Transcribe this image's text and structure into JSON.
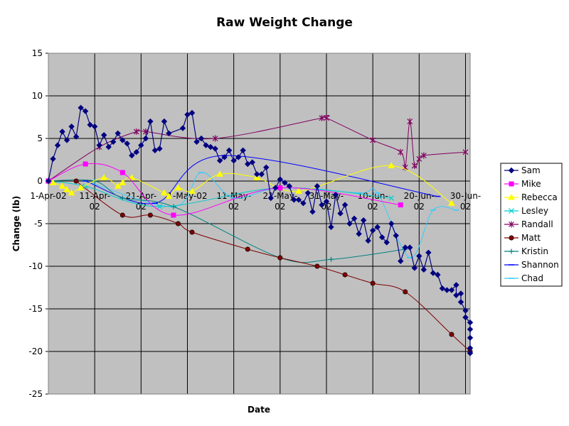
{
  "chart_data": {
    "type": "line",
    "title": "Raw Weight Change",
    "xlabel": "Date",
    "ylabel": "Change (lb)",
    "ylim": [
      -25,
      15
    ],
    "yticks": [
      15,
      10,
      5,
      0,
      -5,
      -10,
      -15,
      -20,
      -25
    ],
    "xlim": [
      "2002-04-01",
      "2002-07-01"
    ],
    "xticks": [
      {
        "date": "2002-04-01",
        "l1": "1-Apr-02",
        "l2": ""
      },
      {
        "date": "2002-04-11",
        "l1": "11-Apr-",
        "l2": "02"
      },
      {
        "date": "2002-04-21",
        "l1": "21-Apr-",
        "l2": "02"
      },
      {
        "date": "2002-05-01",
        "l1": "1-May-02",
        "l2": ""
      },
      {
        "date": "2002-05-11",
        "l1": "11-May-",
        "l2": "02"
      },
      {
        "date": "2002-05-21",
        "l1": "21-May-",
        "l2": "02"
      },
      {
        "date": "2002-05-31",
        "l1": "31-May-",
        "l2": "02"
      },
      {
        "date": "2002-06-10",
        "l1": "10-Jun-",
        "l2": "02"
      },
      {
        "date": "2002-06-20",
        "l1": "20-Jun-",
        "l2": "02"
      },
      {
        "date": "2002-06-30",
        "l1": "30-Jun-",
        "l2": "02"
      }
    ],
    "grid": true,
    "plot_background": "#c0c0c0",
    "legend_position": "right",
    "series": [
      {
        "name": "Sam",
        "color": "#000080",
        "marker": "diamond",
        "points": [
          [
            "2002-04-01",
            0
          ],
          [
            "2002-04-02",
            2.6
          ],
          [
            "2002-04-03",
            4.2
          ],
          [
            "2002-04-04",
            5.8
          ],
          [
            "2002-04-05",
            4.8
          ],
          [
            "2002-04-06",
            6.4
          ],
          [
            "2002-04-07",
            5.2
          ],
          [
            "2002-04-08",
            8.6
          ],
          [
            "2002-04-09",
            8.2
          ],
          [
            "2002-04-10",
            6.6
          ],
          [
            "2002-04-11",
            6.4
          ],
          [
            "2002-04-12",
            4.2
          ],
          [
            "2002-04-13",
            5.4
          ],
          [
            "2002-04-14",
            4.0
          ],
          [
            "2002-04-15",
            4.6
          ],
          [
            "2002-04-16",
            5.6
          ],
          [
            "2002-04-17",
            4.8
          ],
          [
            "2002-04-18",
            4.4
          ],
          [
            "2002-04-19",
            3.0
          ],
          [
            "2002-04-20",
            3.4
          ],
          [
            "2002-04-21",
            4.2
          ],
          [
            "2002-04-22",
            5.0
          ],
          [
            "2002-04-23",
            7.0
          ],
          [
            "2002-04-24",
            3.6
          ],
          [
            "2002-04-25",
            3.8
          ],
          [
            "2002-04-26",
            7.0
          ],
          [
            "2002-04-27",
            5.6
          ],
          [
            "2002-04-30",
            6.2
          ],
          [
            "2002-05-01",
            7.8
          ],
          [
            "2002-05-02",
            8.0
          ],
          [
            "2002-05-03",
            4.6
          ],
          [
            "2002-05-04",
            5.0
          ],
          [
            "2002-05-05",
            4.2
          ],
          [
            "2002-05-06",
            4.0
          ],
          [
            "2002-05-07",
            3.8
          ],
          [
            "2002-05-08",
            2.4
          ],
          [
            "2002-05-09",
            2.8
          ],
          [
            "2002-05-10",
            3.6
          ],
          [
            "2002-05-11",
            2.4
          ],
          [
            "2002-05-12",
            2.8
          ],
          [
            "2002-05-13",
            3.6
          ],
          [
            "2002-05-14",
            2.0
          ],
          [
            "2002-05-15",
            2.2
          ],
          [
            "2002-05-16",
            0.8
          ],
          [
            "2002-05-17",
            0.8
          ],
          [
            "2002-05-18",
            1.6
          ],
          [
            "2002-05-19",
            -2.0
          ],
          [
            "2002-05-20",
            -0.8
          ],
          [
            "2002-05-21",
            0.2
          ],
          [
            "2002-05-22",
            -0.2
          ],
          [
            "2002-05-23",
            -0.6
          ],
          [
            "2002-05-24",
            -2.2
          ],
          [
            "2002-05-25",
            -2.2
          ],
          [
            "2002-05-26",
            -2.6
          ],
          [
            "2002-05-27",
            -1.4
          ],
          [
            "2002-05-28",
            -3.6
          ],
          [
            "2002-05-29",
            -0.6
          ],
          [
            "2002-05-30",
            -2.8
          ],
          [
            "2002-05-31",
            -2.4
          ],
          [
            "2002-06-01",
            -5.4
          ],
          [
            "2002-06-02",
            -1.6
          ],
          [
            "2002-06-03",
            -3.8
          ],
          [
            "2002-06-04",
            -2.8
          ],
          [
            "2002-06-05",
            -5.0
          ],
          [
            "2002-06-06",
            -4.4
          ],
          [
            "2002-06-07",
            -6.2
          ],
          [
            "2002-06-08",
            -4.6
          ],
          [
            "2002-06-09",
            -7.0
          ],
          [
            "2002-06-10",
            -5.8
          ],
          [
            "2002-06-11",
            -5.4
          ],
          [
            "2002-06-12",
            -6.6
          ],
          [
            "2002-06-13",
            -7.2
          ],
          [
            "2002-06-14",
            -5.0
          ],
          [
            "2002-06-15",
            -6.4
          ],
          [
            "2002-06-16",
            -9.4
          ],
          [
            "2002-06-17",
            -7.8
          ],
          [
            "2002-06-18",
            -7.8
          ],
          [
            "2002-06-19",
            -10.2
          ],
          [
            "2002-06-20",
            -8.8
          ],
          [
            "2002-06-21",
            -10.4
          ],
          [
            "2002-06-22",
            -8.4
          ],
          [
            "2002-06-23",
            -10.8
          ],
          [
            "2002-06-24",
            -11.0
          ],
          [
            "2002-06-25",
            -12.6
          ],
          [
            "2002-06-26",
            -12.8
          ],
          [
            "2002-06-27",
            -12.8
          ],
          [
            "2002-06-28",
            -12.2
          ],
          [
            "2002-06-28",
            -13.4
          ],
          [
            "2002-06-29",
            -13.2
          ],
          [
            "2002-06-29",
            -14.2
          ],
          [
            "2002-06-30",
            -15.2
          ],
          [
            "2002-06-30",
            -16.0
          ],
          [
            "2002-07-01",
            -16.6
          ],
          [
            "2002-07-01",
            -17.4
          ],
          [
            "2002-07-01",
            -18.4
          ],
          [
            "2002-07-01",
            -19.6
          ],
          [
            "2002-07-01",
            -20.2
          ]
        ]
      },
      {
        "name": "Mike",
        "color": "#ff00ff",
        "marker": "square",
        "points": [
          [
            "2002-04-01",
            0
          ],
          [
            "2002-04-09",
            2.0
          ],
          [
            "2002-04-17",
            1.0
          ],
          [
            "2002-04-28",
            -4.0
          ],
          [
            "2002-05-21",
            -0.8
          ],
          [
            "2002-06-16",
            -2.8
          ]
        ]
      },
      {
        "name": "Rebecca",
        "color": "#ffff00",
        "marker": "triangle",
        "points": [
          [
            "2002-04-02",
            -0.2
          ],
          [
            "2002-04-04",
            -0.6
          ],
          [
            "2002-04-05",
            -1.0
          ],
          [
            "2002-04-06",
            -1.4
          ],
          [
            "2002-04-08",
            -0.8
          ],
          [
            "2002-04-13",
            0.4
          ],
          [
            "2002-04-16",
            -0.6
          ],
          [
            "2002-04-17",
            -0.2
          ],
          [
            "2002-04-19",
            0.4
          ],
          [
            "2002-04-26",
            -1.4
          ],
          [
            "2002-04-27",
            -1.8
          ],
          [
            "2002-04-29",
            -0.8
          ],
          [
            "2002-05-02",
            -1.2
          ],
          [
            "2002-05-08",
            0.8
          ],
          [
            "2002-05-16",
            0.4
          ],
          [
            "2002-05-25",
            -1.2
          ],
          [
            "2002-06-14",
            1.8
          ],
          [
            "2002-06-27",
            -2.6
          ]
        ]
      },
      {
        "name": "Lesley",
        "color": "#00cccc",
        "marker": "x",
        "points": [
          [
            "2002-04-01",
            0
          ],
          [
            "2002-04-09",
            -0.6
          ],
          [
            "2002-04-25",
            -3.0
          ],
          [
            "2002-05-21",
            -0.8
          ],
          [
            "2002-06-14",
            -2.0
          ]
        ]
      },
      {
        "name": "Randall",
        "color": "#800060",
        "marker": "asterisk",
        "points": [
          [
            "2002-04-01",
            0
          ],
          [
            "2002-04-12",
            4.0
          ],
          [
            "2002-04-20",
            5.8
          ],
          [
            "2002-04-22",
            5.8
          ],
          [
            "2002-05-07",
            5.0
          ],
          [
            "2002-05-30",
            7.4
          ],
          [
            "2002-05-31",
            7.4
          ],
          [
            "2002-06-10",
            4.8
          ],
          [
            "2002-06-16",
            3.4
          ],
          [
            "2002-06-17",
            1.6
          ],
          [
            "2002-06-18",
            7.0
          ],
          [
            "2002-06-19",
            1.8
          ],
          [
            "2002-06-20",
            2.6
          ],
          [
            "2002-06-21",
            3.0
          ],
          [
            "2002-06-30",
            3.4
          ]
        ]
      },
      {
        "name": "Matt",
        "color": "#800000",
        "marker": "circle",
        "points": [
          [
            "2002-04-07",
            0
          ],
          [
            "2002-04-17",
            -4.0
          ],
          [
            "2002-04-23",
            -4.0
          ],
          [
            "2002-04-29",
            -5.0
          ],
          [
            "2002-05-02",
            -6.0
          ],
          [
            "2002-05-14",
            -8.0
          ],
          [
            "2002-05-21",
            -9.0
          ],
          [
            "2002-05-29",
            -10.0
          ],
          [
            "2002-06-04",
            -11.0
          ],
          [
            "2002-06-10",
            -12.0
          ],
          [
            "2002-06-17",
            -13.0
          ],
          [
            "2002-06-27",
            -18.0
          ],
          [
            "2002-07-01",
            -20.0
          ]
        ]
      },
      {
        "name": "Kristin",
        "color": "#008080",
        "marker": "plus",
        "points": [
          [
            "2002-04-01",
            0
          ],
          [
            "2002-04-11",
            0
          ],
          [
            "2002-04-17",
            -2.0
          ],
          [
            "2002-04-28",
            -3.0
          ],
          [
            "2002-05-21",
            -9.0
          ],
          [
            "2002-06-01",
            -9.2
          ],
          [
            "2002-06-17",
            -8.0
          ]
        ]
      },
      {
        "name": "Shannon",
        "color": "#0000ff",
        "marker": "dash",
        "points": [
          [
            "2002-04-09",
            0
          ],
          [
            "2002-04-24",
            -2.6
          ],
          [
            "2002-05-09",
            3.0
          ],
          [
            "2002-06-24",
            -1.8
          ]
        ]
      },
      {
        "name": "Chad",
        "color": "#33ccff",
        "marker": "dash",
        "points": [
          [
            "2002-04-09",
            0
          ],
          [
            "2002-04-28",
            -3.0
          ],
          [
            "2002-05-04",
            1.0
          ],
          [
            "2002-05-11",
            -2.0
          ],
          [
            "2002-05-21",
            -0.8
          ],
          [
            "2002-06-07",
            -1.4
          ],
          [
            "2002-06-11",
            -1.4
          ],
          [
            "2002-06-18",
            -9.0
          ],
          [
            "2002-06-23",
            -3.4
          ],
          [
            "2002-06-28",
            -3.4
          ]
        ]
      }
    ]
  }
}
